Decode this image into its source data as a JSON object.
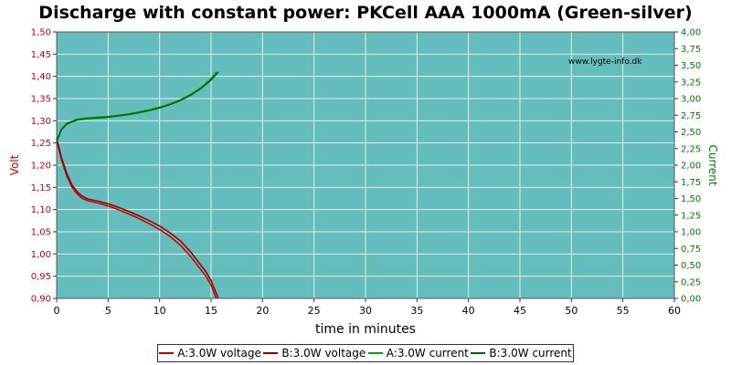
{
  "chart_data": {
    "type": "line",
    "title": "Discharge with constant power: PKCell AAA 1000mA (Green-silver)",
    "watermark": "www.lygte-info.dk",
    "xlabel": "time in minutes",
    "ylabel_left": "Volt",
    "ylabel_right": "Current",
    "xlim": [
      0,
      60
    ],
    "ylim_left": [
      0.9,
      1.5
    ],
    "ylim_right": [
      0.0,
      4.0
    ],
    "x_ticks": [
      "0",
      "5",
      "10",
      "15",
      "20",
      "25",
      "30",
      "35",
      "40",
      "45",
      "50",
      "55",
      "60"
    ],
    "y_left_ticks": [
      "0,90",
      "0,95",
      "1,00",
      "1,05",
      "1,10",
      "1,15",
      "1,20",
      "1,25",
      "1,30",
      "1,35",
      "1,40",
      "1,45",
      "1,50"
    ],
    "y_right_ticks": [
      "0,00",
      "0,25",
      "0,50",
      "0,75",
      "1,00",
      "1,25",
      "1,50",
      "1,75",
      "2,00",
      "2,25",
      "2,50",
      "2,75",
      "3,00",
      "3,25",
      "3,50",
      "3,75",
      "4,00"
    ],
    "grid": true,
    "legend_position": "bottom",
    "colors": {
      "plot_bg": "#66bdbd",
      "grid": "#e0eeee",
      "voltage_axis": "#cc0000",
      "current_axis": "#008000"
    },
    "series": [
      {
        "name": "A:3.0W voltage",
        "axis": "left",
        "color": "#cc0000",
        "x": [
          0,
          0.5,
          1,
          1.5,
          2,
          2.5,
          3,
          4,
          5,
          6,
          7,
          8,
          9,
          10,
          11,
          12,
          13,
          14,
          14.5,
          15,
          15.5
        ],
        "y": [
          1.255,
          1.21,
          1.175,
          1.15,
          1.135,
          1.125,
          1.12,
          1.115,
          1.108,
          1.1,
          1.09,
          1.08,
          1.068,
          1.055,
          1.04,
          1.02,
          0.995,
          0.965,
          0.95,
          0.93,
          0.9
        ]
      },
      {
        "name": "B:3.0W voltage",
        "axis": "left",
        "color": "#990000",
        "x": [
          0,
          0.5,
          1,
          1.5,
          2,
          2.5,
          3,
          4,
          5,
          6,
          7,
          8,
          9,
          10,
          11,
          12,
          13,
          14,
          14.5,
          15,
          15.7
        ],
        "y": [
          1.26,
          1.215,
          1.18,
          1.155,
          1.14,
          1.13,
          1.124,
          1.119,
          1.113,
          1.105,
          1.096,
          1.086,
          1.075,
          1.063,
          1.048,
          1.03,
          1.005,
          0.975,
          0.96,
          0.94,
          0.9
        ]
      },
      {
        "name": "A:3.0W current",
        "axis": "right",
        "color": "#00aa00",
        "x": [
          0,
          0.5,
          1,
          2,
          3,
          4,
          5,
          6,
          7,
          8,
          9,
          10,
          11,
          12,
          13,
          14,
          15,
          15.5
        ],
        "y": [
          2.37,
          2.55,
          2.63,
          2.69,
          2.71,
          2.72,
          2.73,
          2.75,
          2.77,
          2.8,
          2.83,
          2.87,
          2.92,
          2.98,
          3.06,
          3.16,
          3.3,
          3.4
        ]
      },
      {
        "name": "B:3.0W current",
        "axis": "right",
        "color": "#006400",
        "x": [
          0,
          0.5,
          1,
          2,
          3,
          4,
          5,
          6,
          7,
          8,
          9,
          10,
          11,
          12,
          13,
          14,
          15,
          15.7
        ],
        "y": [
          2.36,
          2.54,
          2.62,
          2.68,
          2.7,
          2.71,
          2.72,
          2.74,
          2.76,
          2.79,
          2.82,
          2.86,
          2.91,
          2.97,
          3.05,
          3.15,
          3.28,
          3.4
        ]
      }
    ]
  }
}
